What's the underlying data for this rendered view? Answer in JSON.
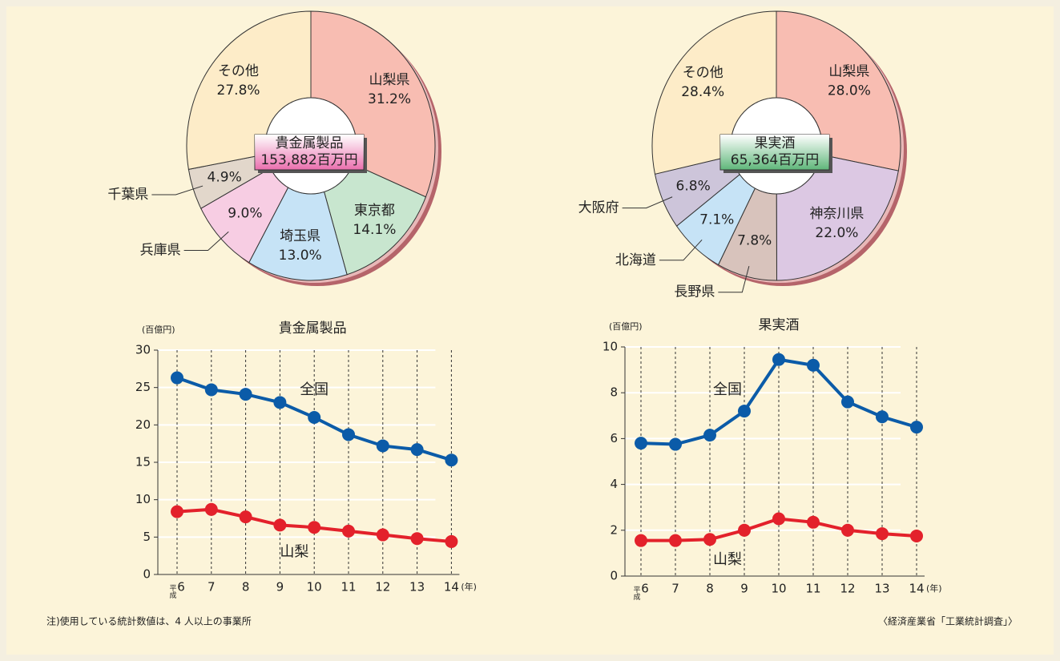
{
  "chart_data": [
    {
      "type": "pie",
      "center_title": "貴金属製品",
      "center_total": "153,882百万円",
      "center_color": "#ea6fae",
      "categories": [
        "山梨県",
        "東京都",
        "埼玉県",
        "兵庫県",
        "千葉県",
        "その他"
      ],
      "values": [
        31.2,
        14.1,
        13.0,
        9.0,
        4.9,
        27.8
      ],
      "value_labels": [
        "31.2%",
        "14.1%",
        "13.0%",
        "9.0%",
        "4.9%",
        "27.8%"
      ],
      "colors": [
        "#f8bdb2",
        "#c8e6cf",
        "#c6e3f6",
        "#f7cde3",
        "#e2d7cb",
        "#fdecc8"
      ]
    },
    {
      "type": "pie",
      "center_title": "果実酒",
      "center_total": "65,364百万円",
      "center_color": "#5fb77a",
      "categories": [
        "山梨県",
        "神奈川県",
        "長野県",
        "北海道",
        "大阪府",
        "その他"
      ],
      "values": [
        28.0,
        22.0,
        7.8,
        7.1,
        6.8,
        28.4
      ],
      "value_labels": [
        "28.0%",
        "22.0%",
        "7.8%",
        "7.1%",
        "6.8%",
        "28.4%"
      ],
      "colors": [
        "#f8bdb2",
        "#dcc8e3",
        "#d8c3bc",
        "#c6e3f6",
        "#cdc5da",
        "#fdecc8"
      ]
    },
    {
      "type": "line",
      "title": "貴金属製品",
      "y_unit": "(百億円)",
      "era_label": "平成",
      "x_unit": "(年)",
      "categories": [
        "6",
        "7",
        "8",
        "9",
        "10",
        "11",
        "12",
        "13",
        "14"
      ],
      "ylim": [
        0,
        30
      ],
      "yticks": [
        0,
        5,
        10,
        15,
        20,
        25,
        30
      ],
      "grid": true,
      "series": [
        {
          "name": "全国",
          "color": "#0b5ba8",
          "values": [
            26.3,
            24.7,
            24.1,
            23.0,
            21.0,
            18.7,
            17.2,
            16.7,
            15.3
          ]
        },
        {
          "name": "山梨",
          "color": "#e3212b",
          "values": [
            8.4,
            8.7,
            7.7,
            6.6,
            6.3,
            5.8,
            5.3,
            4.8,
            4.4
          ]
        }
      ]
    },
    {
      "type": "line",
      "title": "果実酒",
      "y_unit": "(百億円)",
      "era_label": "平成",
      "x_unit": "(年)",
      "categories": [
        "6",
        "7",
        "8",
        "9",
        "10",
        "11",
        "12",
        "13",
        "14"
      ],
      "ylim": [
        0,
        10
      ],
      "yticks": [
        0,
        2,
        4,
        6,
        8,
        10
      ],
      "grid": true,
      "series": [
        {
          "name": "全国",
          "color": "#0b5ba8",
          "values": [
            5.8,
            5.75,
            6.15,
            7.2,
            9.45,
            9.2,
            7.6,
            6.95,
            6.5
          ]
        },
        {
          "name": "山梨",
          "color": "#e3212b",
          "values": [
            1.55,
            1.55,
            1.6,
            2.0,
            2.5,
            2.35,
            2.0,
            1.85,
            1.75
          ]
        }
      ]
    }
  ],
  "note": "注)使用している統計数値は、4 人以上の事業所",
  "source": "〈経済産業省「工業統計調査」〉"
}
